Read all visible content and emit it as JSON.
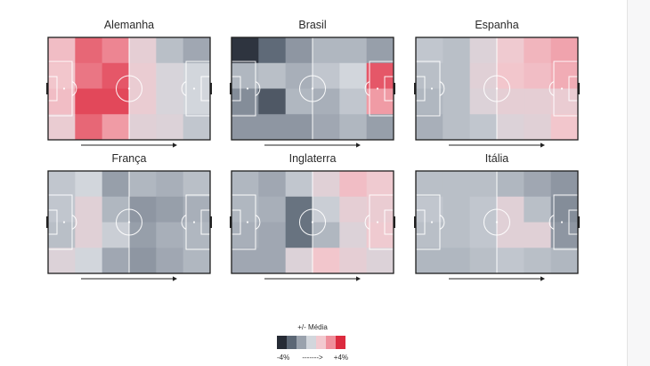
{
  "chart_data": {
    "type": "heatmap",
    "legend": {
      "title": "+/- Média",
      "min_label": "-4%",
      "max_label": "+4%",
      "arrow": "------->",
      "colors": [
        "#262b35",
        "#5c6775",
        "#9aa2ad",
        "#d2d6dc",
        "#f2c9cf",
        "#ef8f9b",
        "#dc2a3e"
      ]
    },
    "grid": {
      "rows": 4,
      "cols": 6
    },
    "value_range": [
      -4,
      4
    ],
    "panels": [
      {
        "title": "Alemanha",
        "values": [
          [
            1.6,
            3.2,
            2.8,
            0.8,
            -0.6,
            -1.2
          ],
          [
            1.4,
            3.0,
            3.4,
            1.0,
            0.2,
            0.0
          ],
          [
            1.6,
            3.6,
            3.6,
            1.0,
            0.2,
            0.0
          ],
          [
            1.0,
            3.2,
            2.4,
            0.6,
            0.4,
            -0.4
          ]
        ]
      },
      {
        "title": "Brasil",
        "values": [
          [
            -3.8,
            -2.6,
            -1.6,
            -0.8,
            -0.8,
            -1.4
          ],
          [
            -0.8,
            -0.6,
            -1.0,
            -0.4,
            0.0,
            3.4
          ],
          [
            -1.8,
            -3.0,
            -0.8,
            -1.0,
            -0.4,
            2.4
          ],
          [
            -1.6,
            -1.6,
            -1.6,
            -1.2,
            -0.8,
            -1.4
          ]
        ]
      },
      {
        "title": "Espanha",
        "values": [
          [
            -0.4,
            -0.6,
            0.4,
            1.2,
            1.8,
            2.2
          ],
          [
            -0.6,
            -0.6,
            0.6,
            1.4,
            1.6,
            2.0
          ],
          [
            -0.8,
            -0.6,
            0.4,
            0.8,
            0.8,
            1.0
          ],
          [
            -1.0,
            -0.6,
            -0.4,
            0.4,
            0.6,
            1.4
          ]
        ]
      },
      {
        "title": "França",
        "values": [
          [
            -0.4,
            0.0,
            -1.4,
            -0.8,
            -1.0,
            -0.6
          ],
          [
            -0.4,
            0.6,
            -0.8,
            -1.6,
            -1.4,
            -1.0
          ],
          [
            -0.6,
            0.6,
            -0.2,
            -1.4,
            -1.0,
            -0.8
          ],
          [
            0.4,
            0.0,
            -1.2,
            -1.6,
            -1.2,
            -0.8
          ]
        ]
      },
      {
        "title": "Inglaterra",
        "values": [
          [
            -0.8,
            -1.2,
            -0.4,
            0.6,
            1.6,
            1.2
          ],
          [
            -0.8,
            -1.0,
            -2.4,
            -0.2,
            0.8,
            1.0
          ],
          [
            -1.0,
            -1.2,
            -2.4,
            -0.8,
            0.4,
            1.2
          ],
          [
            -1.2,
            -1.2,
            0.4,
            1.4,
            0.8,
            0.4
          ]
        ]
      },
      {
        "title": "Itália",
        "values": [
          [
            -0.6,
            -0.6,
            -0.6,
            -0.8,
            -1.2,
            -1.6
          ],
          [
            -0.4,
            -0.6,
            -0.4,
            0.6,
            -0.6,
            -1.8
          ],
          [
            -0.6,
            -0.6,
            -0.4,
            0.6,
            0.6,
            -1.6
          ],
          [
            -0.8,
            -0.8,
            -0.6,
            -0.4,
            -0.6,
            -0.8
          ]
        ]
      }
    ]
  }
}
